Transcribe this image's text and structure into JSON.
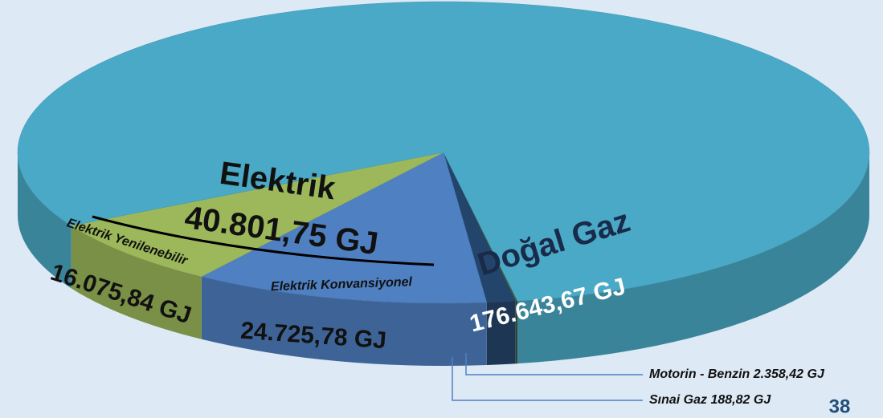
{
  "chart_data": {
    "type": "pie",
    "categories": [
      "Sınai Gaz",
      "Motorin - Benzin",
      "Elektrik Konvansiyonel",
      "Elektrik Yenilenebilir",
      "Doğal Gaz"
    ],
    "values": [
      188.82,
      2358.42,
      24725.78,
      16075.84,
      176643.67
    ],
    "value_labels": [
      "188,82 GJ",
      "2.358,42 GJ",
      "24.725,78 GJ",
      "16.075,84 GJ",
      "176.643,67 GJ"
    ],
    "colors": [
      "#3c5a45",
      "#24456b",
      "#4f80c2",
      "#9db85a",
      "#4aa9c6"
    ],
    "groups": [
      {
        "name": "Elektrik",
        "value": 40801.75,
        "value_label": "40.801,75 GJ"
      }
    ],
    "page_number": "38"
  }
}
